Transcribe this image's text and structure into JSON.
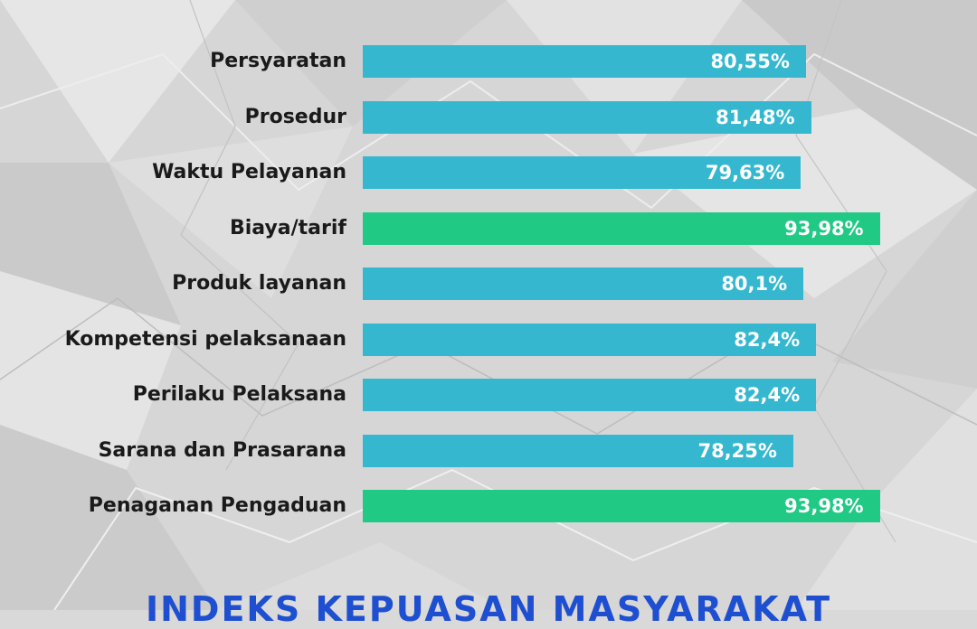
{
  "chart_data": {
    "type": "bar",
    "orientation": "horizontal",
    "categories": [
      "Persyaratan",
      "Prosedur",
      "Waktu Pelayanan",
      "Biaya/tarif",
      "Produk layanan",
      "Kompetensi pelaksanaan",
      "Perilaku Pelaksana",
      "Sarana dan Prasarana",
      "Penaganan Pengaduan"
    ],
    "values": [
      80.55,
      81.48,
      79.63,
      93.98,
      80.1,
      82.4,
      82.4,
      78.25,
      93.98
    ],
    "value_labels": [
      "80,55%",
      "81,48%",
      "79,63%",
      "93,98%",
      "80,1%",
      "82,4%",
      "82,4%",
      "78,25%",
      "93,98%"
    ],
    "bar_colors": [
      "#35b8cf",
      "#35b8cf",
      "#35b8cf",
      "#20c984",
      "#35b8cf",
      "#35b8cf",
      "#35b8cf",
      "#35b8cf",
      "#20c984"
    ],
    "title": "INDEKS KEPUASAN MASYARAKAT",
    "xlabel": "",
    "ylabel": "",
    "grid": false,
    "legend": "none"
  },
  "colors": {
    "bar_default": "#35b8cf",
    "bar_highlight": "#20c984",
    "title": "#1f4fd1",
    "label": "#1a1a1a",
    "value_text": "#ffffff"
  }
}
